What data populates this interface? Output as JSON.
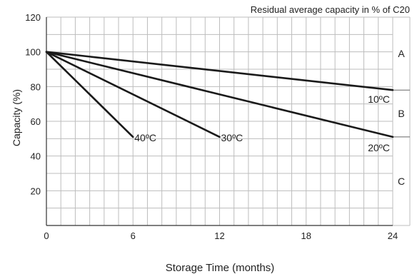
{
  "chart_data": {
    "type": "line",
    "title": "",
    "annotation": "Residual average capacity in % of C20",
    "xlabel": "Storage Time (months)",
    "ylabel": "Capacity (%)",
    "xlim": [
      0,
      24
    ],
    "ylim": [
      0,
      120
    ],
    "x_ticks": [
      0,
      6,
      12,
      18,
      24
    ],
    "y_ticks": [
      20,
      40,
      60,
      80,
      100,
      120
    ],
    "grid": true,
    "series": [
      {
        "name": "40ºC",
        "x": [
          0,
          6
        ],
        "y": [
          100,
          51
        ]
      },
      {
        "name": "30ºC",
        "x": [
          0,
          12
        ],
        "y": [
          100,
          51
        ]
      },
      {
        "name": "20ºC",
        "x": [
          0,
          24
        ],
        "y": [
          100,
          51
        ]
      },
      {
        "name": "10ºC",
        "x": [
          0,
          24
        ],
        "y": [
          100,
          78
        ]
      }
    ],
    "zones": [
      {
        "label": "A",
        "y_range": [
          78,
          120
        ]
      },
      {
        "label": "B",
        "y_range": [
          51,
          78
        ]
      },
      {
        "label": "C",
        "y_range": [
          0,
          51
        ]
      }
    ],
    "colors": {
      "line": "#1a1a1a",
      "grid": "#bdbdbd",
      "axis": "#333333"
    }
  }
}
